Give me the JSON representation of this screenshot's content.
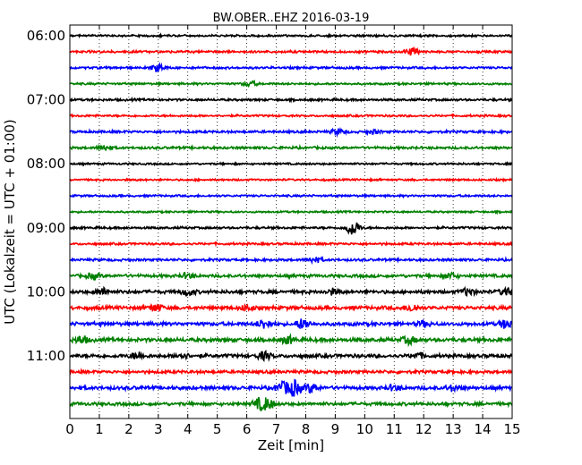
{
  "chart_data": {
    "type": "line",
    "title": "BW.OBER..EHZ 2016-03-19",
    "xlabel": "Zeit  [min]",
    "ylabel": "UTC (Lokalzeit = UTC + 01:00)",
    "xlim": [
      0,
      15
    ],
    "x_ticks": [
      "0",
      "1",
      "2",
      "3",
      "4",
      "5",
      "6",
      "7",
      "8",
      "9",
      "10",
      "11",
      "12",
      "13",
      "14",
      "15"
    ],
    "y_tick_labels": [
      "06:00",
      "07:00",
      "08:00",
      "09:00",
      "10:00",
      "11:00"
    ],
    "trace_start_times": [
      "06:00",
      "06:15",
      "06:30",
      "06:45",
      "07:00",
      "07:15",
      "07:30",
      "07:45",
      "08:00",
      "08:15",
      "08:30",
      "08:45",
      "09:00",
      "09:15",
      "09:30",
      "09:45",
      "10:00",
      "10:15",
      "10:30",
      "10:45",
      "11:00",
      "11:15",
      "11:30",
      "11:45"
    ],
    "trace_colors": [
      "#000000",
      "#ff0000",
      "#0000ff",
      "#008000"
    ],
    "grid": "vertical dotted",
    "legend": "none"
  }
}
